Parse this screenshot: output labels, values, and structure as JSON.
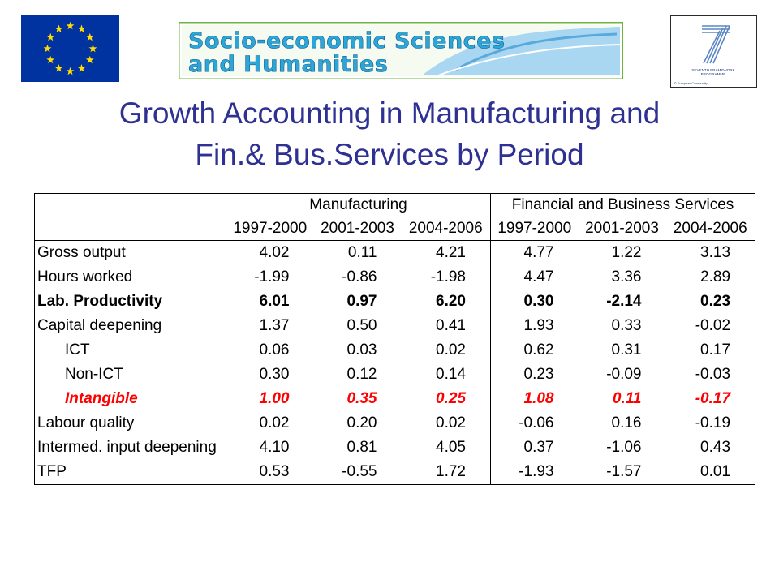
{
  "header": {
    "eu_flag_icon": "eu-flag-icon",
    "banner_text_line1": "Socio-economic Sciences",
    "banner_text_line2": "and Humanities",
    "fp7_logo_line1": "SEVENTH FRAMEWORK",
    "fp7_logo_line2": "PROGRAMME",
    "fp7_copyright": "© European Community"
  },
  "title": {
    "line1": "Growth Accounting in Manufacturing and",
    "line2": "Fin.& Bus.Services by Period"
  },
  "table": {
    "group_headers": [
      "Manufacturing",
      "Financial and Business Services"
    ],
    "periods": [
      "1997-2000",
      "2001-2003",
      "2004-2006",
      "1997-2000",
      "2001-2003",
      "2004-2006"
    ],
    "rows": [
      {
        "label": "Gross output",
        "values": [
          "4.02",
          "0.11",
          "4.21",
          "4.77",
          "1.22",
          "3.13"
        ]
      },
      {
        "label": "Hours worked",
        "values": [
          "-1.99",
          "-0.86",
          "-1.98",
          "4.47",
          "3.36",
          "2.89"
        ]
      },
      {
        "label": "Lab. Productivity",
        "values": [
          "6.01",
          "0.97",
          "6.20",
          "0.30",
          "-2.14",
          "0.23"
        ]
      },
      {
        "label": "Capital deepening",
        "values": [
          "1.37",
          "0.50",
          "0.41",
          "1.93",
          "0.33",
          "-0.02"
        ]
      },
      {
        "label": "ICT",
        "values": [
          "0.06",
          "0.03",
          "0.02",
          "0.62",
          "0.31",
          "0.17"
        ]
      },
      {
        "label": "Non-ICT",
        "values": [
          "0.30",
          "0.12",
          "0.14",
          "0.23",
          "-0.09",
          "-0.03"
        ]
      },
      {
        "label": "Intangible",
        "values": [
          "1.00",
          "0.35",
          "0.25",
          "1.08",
          "0.11",
          "-0.17"
        ]
      },
      {
        "label": "Labour quality",
        "values": [
          "0.02",
          "0.20",
          "0.02",
          "-0.06",
          "0.16",
          "-0.19"
        ]
      },
      {
        "label": "Intermed. input deepening",
        "values": [
          "4.10",
          "0.81",
          "4.05",
          "0.37",
          "-1.06",
          "0.43"
        ]
      },
      {
        "label": "TFP",
        "values": [
          "0.53",
          "-0.55",
          "1.72",
          "-1.93",
          "-1.57",
          "0.01"
        ]
      }
    ]
  },
  "colors": {
    "title": "#2e3192",
    "highlight": "#ff0000",
    "eu_blue": "#0033a0",
    "eu_star": "#ffdd00"
  }
}
